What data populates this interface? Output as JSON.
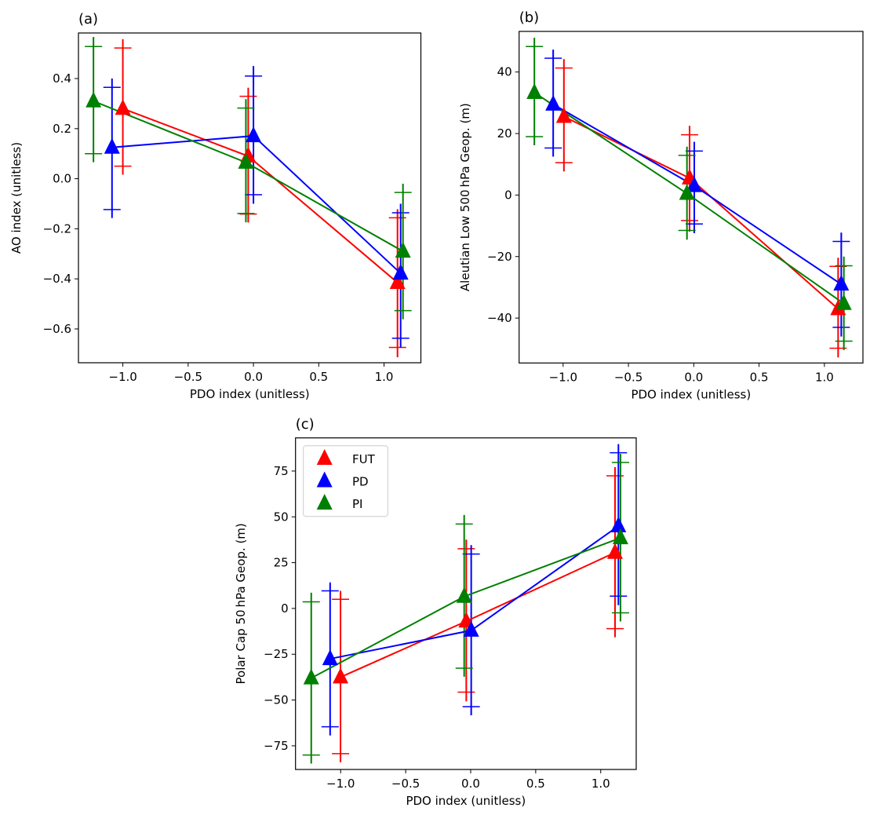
{
  "chart_data": [
    {
      "type": "line",
      "panel": "(a)",
      "title": "(a)",
      "xlabel": "PDO index (unitless)",
      "ylabel": "AO index (unitless)",
      "xlim": [
        -1.34,
        1.282
      ],
      "ylim": [
        -0.735,
        0.582
      ],
      "xticks": [
        -1.0,
        -0.5,
        0.0,
        0.5,
        1.0
      ],
      "xtick_labels": [
        "−1.0",
        "−0.5",
        "0.0",
        "0.5",
        "1.0"
      ],
      "yticks": [
        -0.6,
        -0.4,
        -0.2,
        0.0,
        0.2,
        0.4
      ],
      "ytick_labels": [
        "−0.6",
        "−0.4",
        "−0.2",
        "0.0",
        "0.2",
        "0.4"
      ],
      "grid": false,
      "legend": null,
      "series": [
        {
          "name": "FUT",
          "color": "#ff0000",
          "x": [
            -1.0,
            -0.04,
            1.103
          ],
          "y": [
            0.28,
            0.09,
            -0.415
          ],
          "cap_upper": [
            0.522,
            0.329,
            -0.156
          ],
          "cap_lower": [
            0.05,
            -0.141,
            -0.674
          ],
          "err_upper": [
            0.557,
            0.363,
            -0.123
          ],
          "err_lower": [
            0.017,
            -0.174,
            -0.713
          ]
        },
        {
          "name": "PD",
          "color": "#0000ff",
          "x": [
            -1.083,
            0.0,
            1.127
          ],
          "y": [
            0.125,
            0.171,
            -0.378
          ],
          "cap_upper": [
            0.365,
            0.41,
            -0.136
          ],
          "cap_lower": [
            -0.123,
            -0.064,
            -0.637
          ],
          "err_upper": [
            0.4,
            0.45,
            -0.1
          ],
          "err_lower": [
            -0.155,
            -0.1,
            -0.674
          ]
        },
        {
          "name": "PI",
          "color": "#008000",
          "x": [
            -1.225,
            -0.058,
            1.145
          ],
          "y": [
            0.31,
            0.065,
            -0.29
          ],
          "cap_upper": [
            0.528,
            0.282,
            -0.055
          ],
          "cap_lower": [
            0.1,
            -0.139,
            -0.527
          ],
          "err_upper": [
            0.566,
            0.318,
            -0.02
          ],
          "err_lower": [
            0.067,
            -0.174,
            -0.561
          ]
        }
      ]
    },
    {
      "type": "line",
      "panel": "(b)",
      "title": "(b)",
      "xlabel": "PDO index (unitless)",
      "ylabel": "Aleutian Low 500 hPa Geop. (m)",
      "xlim": [
        -1.337,
        1.295
      ],
      "ylim": [
        -54.6,
        53.2
      ],
      "xticks": [
        -1.0,
        -0.5,
        0.0,
        0.5,
        1.0
      ],
      "xtick_labels": [
        "−1.0",
        "−0.5",
        "0.0",
        "0.5",
        "1.0"
      ],
      "yticks": [
        -40,
        -20,
        0,
        20,
        40
      ],
      "ytick_labels": [
        "−40",
        "−20",
        "0",
        "20",
        "40"
      ],
      "grid": false,
      "legend": null,
      "series": [
        {
          "name": "FUT",
          "color": "#ff0000",
          "x": [
            -0.994,
            -0.032,
            1.105
          ],
          "y": [
            25.5,
            5.5,
            -37.0
          ],
          "cap_upper": [
            41.3,
            19.6,
            -23.2
          ],
          "cap_lower": [
            10.5,
            -8.3,
            -49.8
          ],
          "err_upper": [
            44.2,
            22.5,
            -20.4
          ],
          "err_lower": [
            7.7,
            -11.9,
            -52.8
          ]
        },
        {
          "name": "PD",
          "color": "#0000ff",
          "x": [
            -1.076,
            0.004,
            1.129
          ],
          "y": [
            29.5,
            3.0,
            -29.0
          ],
          "cap_upper": [
            44.5,
            14.3,
            -15.1
          ],
          "cap_lower": [
            15.3,
            -9.4,
            -43.0
          ],
          "err_upper": [
            47.2,
            17.3,
            -12.2
          ],
          "err_lower": [
            12.5,
            -12.4,
            -46.0
          ]
        },
        {
          "name": "PI",
          "color": "#008000",
          "x": [
            -1.22,
            -0.052,
            1.149
          ],
          "y": [
            33.3,
            0.5,
            -35.3
          ],
          "cap_upper": [
            48.3,
            12.9,
            -23.0
          ],
          "cap_lower": [
            19.0,
            -11.5,
            -47.5
          ],
          "err_upper": [
            51.1,
            15.7,
            -20.0
          ],
          "err_lower": [
            16.2,
            -14.5,
            -50.4
          ]
        }
      ]
    },
    {
      "type": "line",
      "panel": "(c)",
      "title": "(c)",
      "xlabel": "PDO index (unitless)",
      "ylabel": "Polar Cap 50 hPa Geop. (m)",
      "xlim": [
        -1.347,
        1.273
      ],
      "ylim": [
        -87.9,
        93.1
      ],
      "xticks": [
        -1.0,
        -0.5,
        0.0,
        0.5,
        1.0
      ],
      "xtick_labels": [
        "−1.0",
        "−0.5",
        "0.0",
        "0.5",
        "1.0"
      ],
      "yticks": [
        -75,
        -50,
        -25,
        0,
        25,
        50,
        75
      ],
      "ytick_labels": [
        "−75",
        "−50",
        "−25",
        "0",
        "25",
        "50",
        "75"
      ],
      "grid": false,
      "legend": "top-left",
      "series": [
        {
          "name": "FUT",
          "color": "#ff0000",
          "x": [
            -1.001,
            -0.034,
            1.11
          ],
          "y": [
            -37.5,
            -7.0,
            30.5
          ],
          "cap_upper": [
            5.0,
            32.6,
            72.4
          ],
          "cap_lower": [
            -79.3,
            -45.7,
            -11.0
          ],
          "err_upper": [
            9.3,
            37.6,
            77.1
          ],
          "err_lower": [
            -83.9,
            -50.7,
            -15.7
          ]
        },
        {
          "name": "PD",
          "color": "#0000ff",
          "x": [
            -1.081,
            0.004,
            1.136
          ],
          "y": [
            -27.5,
            -12.0,
            45.0
          ],
          "cap_upper": [
            9.6,
            29.7,
            85.0
          ],
          "cap_lower": [
            -64.6,
            -53.6,
            6.7
          ],
          "err_upper": [
            13.8,
            34.6,
            89.6
          ],
          "err_lower": [
            -69.3,
            -58.3,
            1.8
          ]
        },
        {
          "name": "PI",
          "color": "#008000",
          "x": [
            -1.226,
            -0.05,
            1.152
          ],
          "y": [
            -38.0,
            6.5,
            38.5
          ],
          "cap_upper": [
            3.6,
            46.1,
            79.7
          ],
          "cap_lower": [
            -80.0,
            -32.6,
            -2.4
          ],
          "err_upper": [
            8.6,
            51.0,
            84.3
          ],
          "err_lower": [
            -84.6,
            -37.1,
            -7.1
          ]
        }
      ]
    }
  ],
  "legend": {
    "entries": [
      {
        "label": "FUT",
        "color": "#ff0000",
        "marker": "triangle-up"
      },
      {
        "label": "PD",
        "color": "#0000ff",
        "marker": "triangle-up"
      },
      {
        "label": "PI",
        "color": "#008000",
        "marker": "triangle-up"
      }
    ]
  }
}
